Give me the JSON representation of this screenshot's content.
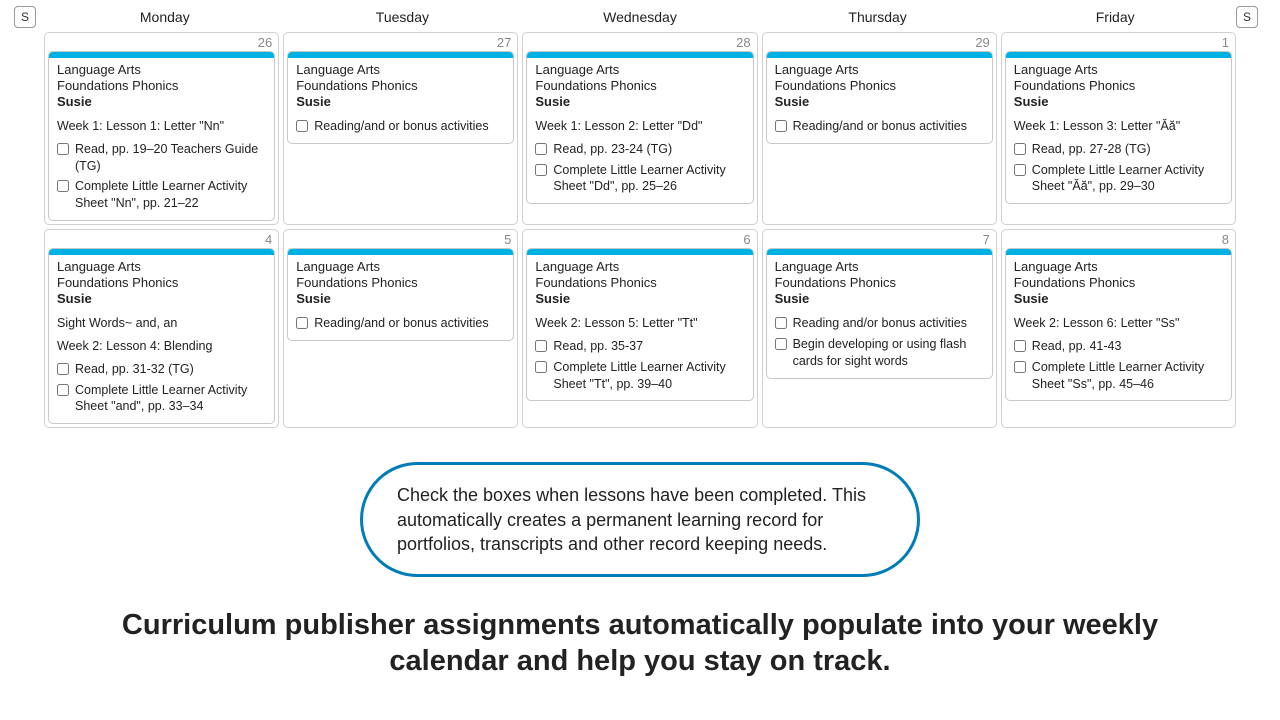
{
  "colors": {
    "stripe": "#00b2e3",
    "callout_border": "#007db8",
    "cell_border": "#d0d0d0",
    "card_border": "#c8c8c8",
    "date_text": "#888888",
    "text": "#222222"
  },
  "weekend_btn_label": "S",
  "days": [
    "Monday",
    "Tuesday",
    "Wednesday",
    "Thursday",
    "Friday"
  ],
  "weeks": [
    {
      "dates": [
        "26",
        "27",
        "28",
        "29",
        "1"
      ],
      "cells": [
        {
          "subject": "Language Arts",
          "course": "Foundations Phonics",
          "student": "Susie",
          "lesson": "Week 1: Lesson 1: Letter \"Nn\"",
          "tasks": [
            "Read, pp. 19–20 Teachers Guide (TG)",
            "Complete Little Learner Activity Sheet \"Nn\", pp. 21–22"
          ]
        },
        {
          "subject": "Language Arts",
          "course": "Foundations Phonics",
          "student": "Susie",
          "lesson": "",
          "tasks": [
            "Reading/and or bonus activities"
          ]
        },
        {
          "subject": "Language Arts",
          "course": "Foundations Phonics",
          "student": "Susie",
          "lesson": "Week 1: Lesson 2: Letter \"Dd\"",
          "tasks": [
            "Read, pp. 23-24 (TG)",
            "Complete Little Learner Activity Sheet \"Dd\", pp. 25–26"
          ]
        },
        {
          "subject": "Language Arts",
          "course": "Foundations Phonics",
          "student": "Susie",
          "lesson": "",
          "tasks": [
            "Reading/and or bonus activities"
          ]
        },
        {
          "subject": "Language Arts",
          "course": "Foundations Phonics",
          "student": "Susie",
          "lesson": "Week 1: Lesson 3: Letter \"Ăă\"",
          "tasks": [
            "Read, pp. 27-28 (TG)",
            "Complete Little Learner Activity Sheet \"Ăă\", pp. 29–30"
          ]
        }
      ]
    },
    {
      "dates": [
        "4",
        "5",
        "6",
        "7",
        "8"
      ],
      "cells": [
        {
          "subject": "Language Arts",
          "course": "Foundations Phonics",
          "student": "Susie",
          "lesson": "Sight Words~ and, an",
          "lesson2": "Week 2: Lesson 4: Blending",
          "tasks": [
            "Read, pp. 31-32 (TG)",
            "Complete Little Learner Activity Sheet \"and\", pp. 33–34"
          ]
        },
        {
          "subject": "Language Arts",
          "course": "Foundations Phonics",
          "student": "Susie",
          "lesson": "",
          "tasks": [
            "Reading/and or bonus activities"
          ]
        },
        {
          "subject": "Language Arts",
          "course": "Foundations Phonics",
          "student": "Susie",
          "lesson": "Week 2: Lesson 5: Letter \"Tt\"",
          "tasks": [
            "Read, pp. 35-37",
            "Complete Little Learner Activity Sheet \"Tt\", pp. 39–40"
          ]
        },
        {
          "subject": "Language Arts",
          "course": "Foundations Phonics",
          "student": "Susie",
          "lesson": "",
          "tasks": [
            "Reading and/or bonus activities",
            "Begin developing or using flash cards for sight words"
          ]
        },
        {
          "subject": "Language Arts",
          "course": "Foundations Phonics",
          "student": "Susie",
          "lesson": "Week 2: Lesson 6: Letter \"Ss\"",
          "tasks": [
            "Read, pp. 41-43",
            "Complete Little Learner Activity Sheet \"Ss\", pp. 45–46"
          ]
        }
      ]
    }
  ],
  "callout_text": "Check the boxes when lessons have been completed. This automatically creates a permanent learning record for portfolios, transcripts and other record keeping needs.",
  "tagline": "Curriculum publisher assignments automatically populate into your weekly calendar and help you stay on track."
}
